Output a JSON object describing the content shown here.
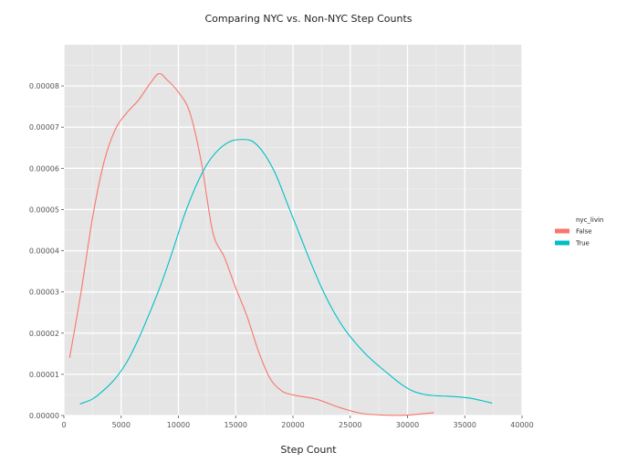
{
  "chart_data": {
    "type": "line",
    "title": "Comparing NYC vs. Non-NYC Step Counts",
    "xlabel": "Step Count",
    "ylabel": "",
    "xlim": [
      0,
      40000
    ],
    "ylim": [
      0,
      9e-05
    ],
    "x_ticks": [
      0,
      5000,
      10000,
      15000,
      20000,
      25000,
      30000,
      35000,
      40000
    ],
    "x_tick_labels": [
      "0",
      "5000",
      "10000",
      "15000",
      "20000",
      "25000",
      "30000",
      "35000",
      "40000"
    ],
    "y_ticks": [
      0,
      1e-05,
      2e-05,
      3e-05,
      4e-05,
      5e-05,
      6e-05,
      7e-05,
      8e-05
    ],
    "y_tick_labels": [
      "0.00000",
      "0.00001",
      "0.00002",
      "0.00003",
      "0.00004",
      "0.00005",
      "0.00006",
      "0.00007",
      "0.00008"
    ],
    "grid": true,
    "legend": {
      "title": "nyc_livin",
      "position": "right"
    },
    "series": [
      {
        "name": "False",
        "color": "#f8766d",
        "x": [
          500,
          1500,
          2500,
          3500,
          4500,
          5500,
          6500,
          7500,
          8300,
          9000,
          10000,
          11000,
          12000,
          13000,
          14000,
          15000,
          16000,
          17000,
          18000,
          19000,
          20000,
          22000,
          24000,
          26000,
          28000,
          30000,
          32300
        ],
        "y": [
          1.4e-05,
          3e-05,
          4.8e-05,
          6.15e-05,
          6.95e-05,
          7.35e-05,
          7.65e-05,
          8.05e-05,
          8.3e-05,
          8.15e-05,
          7.85e-05,
          7.35e-05,
          6.15e-05,
          4.45e-05,
          3.85e-05,
          3.1e-05,
          2.4e-05,
          1.55e-05,
          9e-06,
          6e-06,
          5e-06,
          4e-06,
          2e-06,
          5e-07,
          1e-07,
          1e-07,
          7e-07
        ]
      },
      {
        "name": "True",
        "color": "#00bfc4",
        "x": [
          1400,
          2500,
          3500,
          4500,
          5500,
          6500,
          7500,
          8500,
          9500,
          10500,
          11500,
          12500,
          13500,
          14500,
          15500,
          16500,
          17500,
          18500,
          19500,
          20500,
          21500,
          22500,
          23500,
          24500,
          25500,
          26500,
          27500,
          28500,
          29500,
          30500,
          31500,
          32500,
          33500,
          34500,
          35500,
          36500,
          37400
        ],
        "y": [
          2.8e-06,
          4e-06,
          6.2e-06,
          9e-06,
          1.3e-05,
          1.85e-05,
          2.5e-05,
          3.2e-05,
          4e-05,
          4.85e-05,
          5.55e-05,
          6.1e-05,
          6.45e-05,
          6.65e-05,
          6.7e-05,
          6.65e-05,
          6.35e-05,
          5.85e-05,
          5.15e-05,
          4.45e-05,
          3.75e-05,
          3.1e-05,
          2.55e-05,
          2.1e-05,
          1.75e-05,
          1.45e-05,
          1.2e-05,
          9.7e-06,
          7.5e-06,
          5.9e-06,
          5.1e-06,
          4.8e-06,
          4.7e-06,
          4.5e-06,
          4.2e-06,
          3.6e-06,
          3e-06
        ]
      }
    ]
  }
}
